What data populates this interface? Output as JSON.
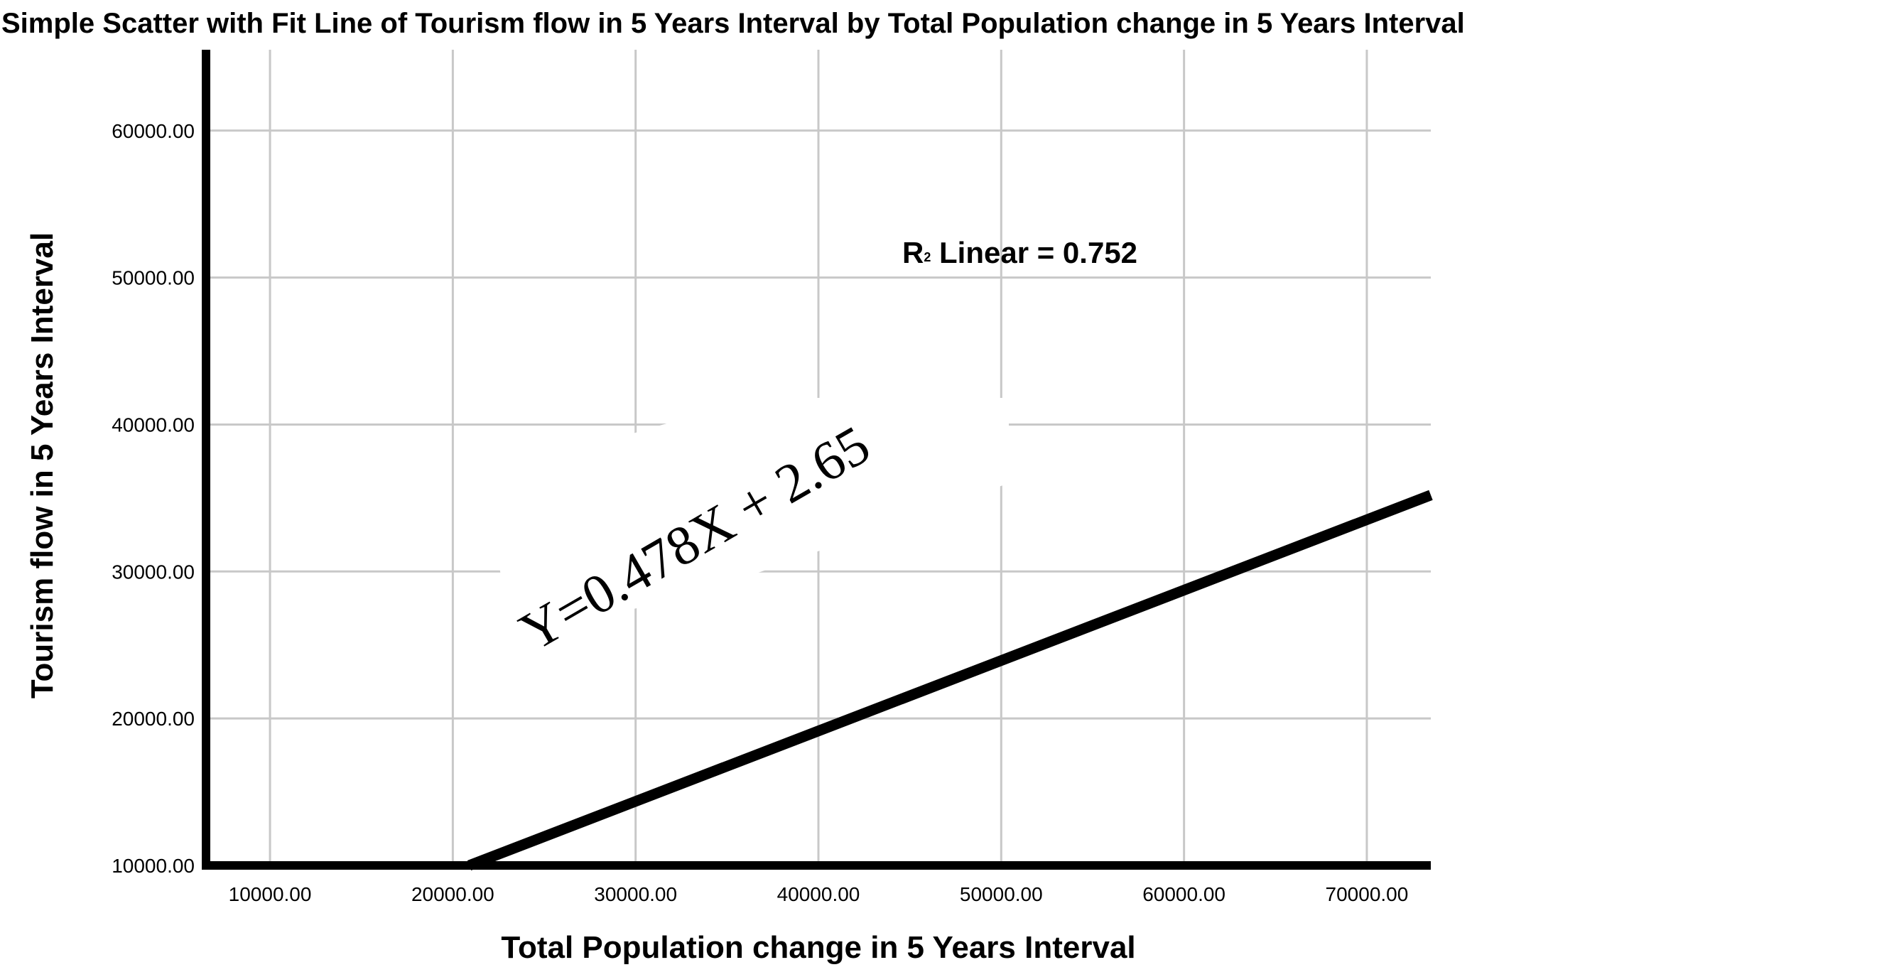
{
  "chart_data": {
    "type": "scatter",
    "title": "Simple Scatter with Fit Line of Tourism flow in 5 Years Interval by  Total Population change  in 5 Years Interval",
    "xlabel": "Total Population change  in 5 Years Interval",
    "ylabel": "Tourism flow in 5 Years Interval",
    "xlim": [
      6500,
      73500
    ],
    "ylim": [
      10000,
      65500
    ],
    "x_ticks": [
      10000,
      20000,
      30000,
      40000,
      50000,
      60000,
      70000
    ],
    "x_tick_labels": [
      "10000.00",
      "20000.00",
      "30000.00",
      "40000.00",
      "50000.00",
      "60000.00",
      "70000.00"
    ],
    "y_ticks": [
      10000,
      20000,
      30000,
      40000,
      50000,
      60000
    ],
    "y_tick_labels": [
      "10000.00",
      "20000.00",
      "30000.00",
      "40000.00",
      "50000.00",
      "60000.00"
    ],
    "grid": true,
    "fit_line": {
      "x": [
        20900,
        73500
      ],
      "y": [
        10000,
        35200
      ]
    },
    "annotations": {
      "r2_main": "R",
      "r2_sup": "2",
      "r2_rest": " Linear = 0.752",
      "equation": "Y=0.478X + 2.65"
    }
  }
}
